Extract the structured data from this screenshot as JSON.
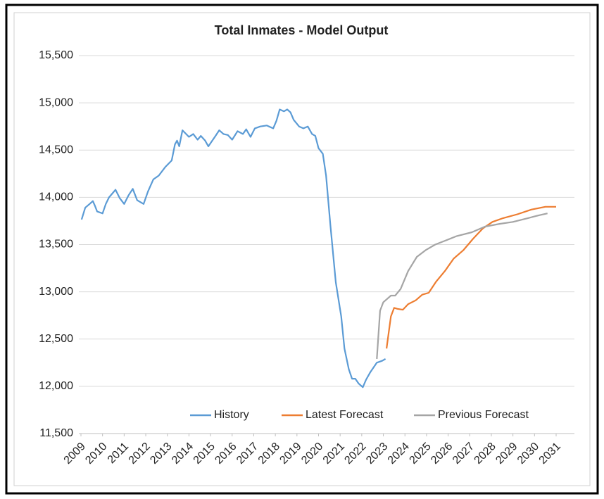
{
  "chart_data": {
    "type": "line",
    "title": "Total Inmates - Model Output",
    "xlim": [
      2009,
      2031
    ],
    "xticks": [
      2009,
      2010,
      2011,
      2012,
      2013,
      2014,
      2015,
      2016,
      2017,
      2018,
      2019,
      2020,
      2021,
      2022,
      2023,
      2024,
      2025,
      2026,
      2027,
      2028,
      2029,
      2030,
      2031
    ],
    "ylim": [
      11500,
      15500
    ],
    "yticks": [
      {
        "value": 11500,
        "label": "11,500"
      },
      {
        "value": 12000,
        "label": "12,000"
      },
      {
        "value": 12500,
        "label": "12,500"
      },
      {
        "value": 13000,
        "label": "13,000"
      },
      {
        "value": 13500,
        "label": "13,500"
      },
      {
        "value": 14000,
        "label": "14,000"
      },
      {
        "value": 14500,
        "label": "14,500"
      },
      {
        "value": 15000,
        "label": "15,000"
      },
      {
        "value": 15500,
        "label": "15,500"
      }
    ],
    "grid": true,
    "legend": "bottom",
    "series": [
      {
        "name": "History",
        "color": "#5b9bd5",
        "x": [
          2009.03,
          2009.2,
          2009.4,
          2009.55,
          2009.65,
          2009.75,
          2010.0,
          2010.15,
          2010.3,
          2010.6,
          2010.8,
          2011.0,
          2011.2,
          2011.4,
          2011.6,
          2011.9,
          2012.1,
          2012.35,
          2012.6,
          2012.9,
          2013.2,
          2013.35,
          2013.45,
          2013.55,
          2013.7,
          2014.0,
          2014.2,
          2014.4,
          2014.55,
          2014.75,
          2014.9,
          2015.2,
          2015.4,
          2015.6,
          2015.8,
          2016.0,
          2016.25,
          2016.5,
          2016.65,
          2016.85,
          2017.05,
          2017.3,
          2017.6,
          2017.9,
          2018.05,
          2018.2,
          2018.4,
          2018.55,
          2018.7,
          2018.85,
          2019.1,
          2019.3,
          2019.5,
          2019.7,
          2019.85,
          2020.0,
          2020.2,
          2020.35,
          2020.55,
          2020.8,
          2021.05,
          2021.2,
          2021.4,
          2021.55,
          2021.7,
          2021.85,
          2022.05,
          2022.2,
          2022.4,
          2022.7,
          2022.95,
          2023.1
        ],
        "values": [
          13765,
          13890,
          13930,
          13960,
          13910,
          13850,
          13830,
          13930,
          14000,
          14080,
          13990,
          13930,
          14020,
          14090,
          13970,
          13930,
          14060,
          14190,
          14230,
          14320,
          14390,
          14560,
          14600,
          14540,
          14710,
          14640,
          14670,
          14610,
          14650,
          14600,
          14540,
          14640,
          14710,
          14670,
          14660,
          14610,
          14700,
          14670,
          14720,
          14640,
          14730,
          14750,
          14760,
          14730,
          14810,
          14930,
          14910,
          14930,
          14900,
          14820,
          14750,
          14730,
          14750,
          14670,
          14650,
          14520,
          14460,
          14230,
          13700,
          13100,
          12740,
          12400,
          12180,
          12080,
          12080,
          12030,
          11990,
          12070,
          12150,
          12250,
          12270,
          12290
        ]
      },
      {
        "name": "Latest Forecast",
        "color": "#ed7d31",
        "x": [
          2023.15,
          2023.35,
          2023.5,
          2023.65,
          2023.9,
          2024.15,
          2024.5,
          2024.8,
          2025.1,
          2025.45,
          2025.85,
          2026.25,
          2026.7,
          2027.15,
          2027.6,
          2028.05,
          2028.55,
          2029.2,
          2029.85,
          2030.5,
          2031.0
        ],
        "values": [
          12400,
          12740,
          12830,
          12820,
          12810,
          12870,
          12910,
          12970,
          12990,
          13110,
          13220,
          13350,
          13440,
          13560,
          13670,
          13740,
          13780,
          13820,
          13870,
          13900,
          13900
        ]
      },
      {
        "name": "Previous Forecast",
        "color": "#a5a5a5",
        "x": [
          2022.7,
          2022.85,
          2023.0,
          2023.15,
          2023.35,
          2023.55,
          2023.8,
          2024.15,
          2024.55,
          2024.95,
          2025.4,
          2025.85,
          2026.4,
          2027.1,
          2027.7,
          2028.4,
          2029.0,
          2029.7,
          2030.2,
          2030.6
        ],
        "values": [
          12290,
          12800,
          12890,
          12920,
          12960,
          12960,
          13030,
          13220,
          13370,
          13440,
          13500,
          13540,
          13590,
          13630,
          13690,
          13720,
          13740,
          13780,
          13810,
          13830
        ]
      }
    ]
  }
}
